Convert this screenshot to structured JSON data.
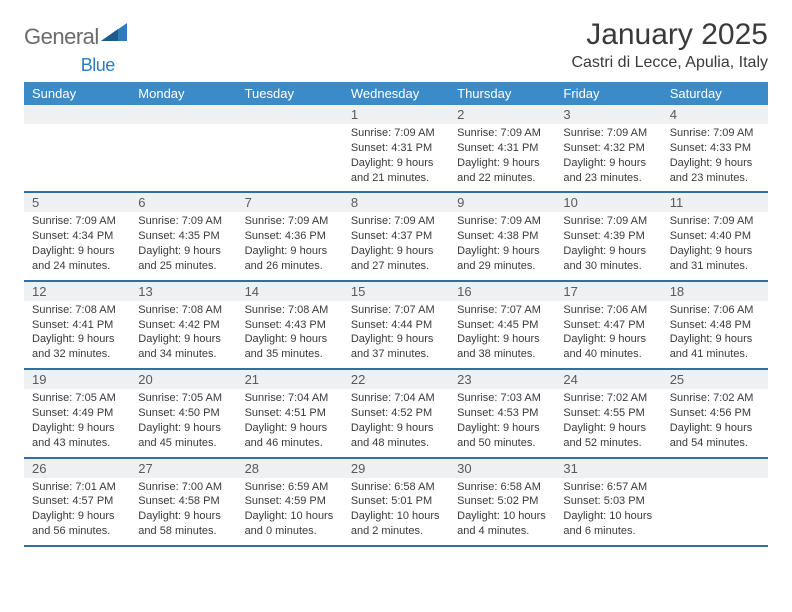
{
  "logo": {
    "text1": "General",
    "text2": "Blue"
  },
  "title": "January 2025",
  "location": "Castri di Lecce, Apulia, Italy",
  "colors": {
    "header_bg": "#3b8bc8",
    "header_text": "#ffffff",
    "daynum_bg": "#eef0f1",
    "rule": "#2f6fa3",
    "logo_gray": "#6b6b6b",
    "logo_blue": "#2f7bbf",
    "text": "#3a3a3a"
  },
  "weekdays": [
    "Sunday",
    "Monday",
    "Tuesday",
    "Wednesday",
    "Thursday",
    "Friday",
    "Saturday"
  ],
  "weeks": [
    [
      null,
      null,
      null,
      {
        "n": "1",
        "sr": "Sunrise: 7:09 AM",
        "ss": "Sunset: 4:31 PM",
        "dl1": "Daylight: 9 hours",
        "dl2": "and 21 minutes."
      },
      {
        "n": "2",
        "sr": "Sunrise: 7:09 AM",
        "ss": "Sunset: 4:31 PM",
        "dl1": "Daylight: 9 hours",
        "dl2": "and 22 minutes."
      },
      {
        "n": "3",
        "sr": "Sunrise: 7:09 AM",
        "ss": "Sunset: 4:32 PM",
        "dl1": "Daylight: 9 hours",
        "dl2": "and 23 minutes."
      },
      {
        "n": "4",
        "sr": "Sunrise: 7:09 AM",
        "ss": "Sunset: 4:33 PM",
        "dl1": "Daylight: 9 hours",
        "dl2": "and 23 minutes."
      }
    ],
    [
      {
        "n": "5",
        "sr": "Sunrise: 7:09 AM",
        "ss": "Sunset: 4:34 PM",
        "dl1": "Daylight: 9 hours",
        "dl2": "and 24 minutes."
      },
      {
        "n": "6",
        "sr": "Sunrise: 7:09 AM",
        "ss": "Sunset: 4:35 PM",
        "dl1": "Daylight: 9 hours",
        "dl2": "and 25 minutes."
      },
      {
        "n": "7",
        "sr": "Sunrise: 7:09 AM",
        "ss": "Sunset: 4:36 PM",
        "dl1": "Daylight: 9 hours",
        "dl2": "and 26 minutes."
      },
      {
        "n": "8",
        "sr": "Sunrise: 7:09 AM",
        "ss": "Sunset: 4:37 PM",
        "dl1": "Daylight: 9 hours",
        "dl2": "and 27 minutes."
      },
      {
        "n": "9",
        "sr": "Sunrise: 7:09 AM",
        "ss": "Sunset: 4:38 PM",
        "dl1": "Daylight: 9 hours",
        "dl2": "and 29 minutes."
      },
      {
        "n": "10",
        "sr": "Sunrise: 7:09 AM",
        "ss": "Sunset: 4:39 PM",
        "dl1": "Daylight: 9 hours",
        "dl2": "and 30 minutes."
      },
      {
        "n": "11",
        "sr": "Sunrise: 7:09 AM",
        "ss": "Sunset: 4:40 PM",
        "dl1": "Daylight: 9 hours",
        "dl2": "and 31 minutes."
      }
    ],
    [
      {
        "n": "12",
        "sr": "Sunrise: 7:08 AM",
        "ss": "Sunset: 4:41 PM",
        "dl1": "Daylight: 9 hours",
        "dl2": "and 32 minutes."
      },
      {
        "n": "13",
        "sr": "Sunrise: 7:08 AM",
        "ss": "Sunset: 4:42 PM",
        "dl1": "Daylight: 9 hours",
        "dl2": "and 34 minutes."
      },
      {
        "n": "14",
        "sr": "Sunrise: 7:08 AM",
        "ss": "Sunset: 4:43 PM",
        "dl1": "Daylight: 9 hours",
        "dl2": "and 35 minutes."
      },
      {
        "n": "15",
        "sr": "Sunrise: 7:07 AM",
        "ss": "Sunset: 4:44 PM",
        "dl1": "Daylight: 9 hours",
        "dl2": "and 37 minutes."
      },
      {
        "n": "16",
        "sr": "Sunrise: 7:07 AM",
        "ss": "Sunset: 4:45 PM",
        "dl1": "Daylight: 9 hours",
        "dl2": "and 38 minutes."
      },
      {
        "n": "17",
        "sr": "Sunrise: 7:06 AM",
        "ss": "Sunset: 4:47 PM",
        "dl1": "Daylight: 9 hours",
        "dl2": "and 40 minutes."
      },
      {
        "n": "18",
        "sr": "Sunrise: 7:06 AM",
        "ss": "Sunset: 4:48 PM",
        "dl1": "Daylight: 9 hours",
        "dl2": "and 41 minutes."
      }
    ],
    [
      {
        "n": "19",
        "sr": "Sunrise: 7:05 AM",
        "ss": "Sunset: 4:49 PM",
        "dl1": "Daylight: 9 hours",
        "dl2": "and 43 minutes."
      },
      {
        "n": "20",
        "sr": "Sunrise: 7:05 AM",
        "ss": "Sunset: 4:50 PM",
        "dl1": "Daylight: 9 hours",
        "dl2": "and 45 minutes."
      },
      {
        "n": "21",
        "sr": "Sunrise: 7:04 AM",
        "ss": "Sunset: 4:51 PM",
        "dl1": "Daylight: 9 hours",
        "dl2": "and 46 minutes."
      },
      {
        "n": "22",
        "sr": "Sunrise: 7:04 AM",
        "ss": "Sunset: 4:52 PM",
        "dl1": "Daylight: 9 hours",
        "dl2": "and 48 minutes."
      },
      {
        "n": "23",
        "sr": "Sunrise: 7:03 AM",
        "ss": "Sunset: 4:53 PM",
        "dl1": "Daylight: 9 hours",
        "dl2": "and 50 minutes."
      },
      {
        "n": "24",
        "sr": "Sunrise: 7:02 AM",
        "ss": "Sunset: 4:55 PM",
        "dl1": "Daylight: 9 hours",
        "dl2": "and 52 minutes."
      },
      {
        "n": "25",
        "sr": "Sunrise: 7:02 AM",
        "ss": "Sunset: 4:56 PM",
        "dl1": "Daylight: 9 hours",
        "dl2": "and 54 minutes."
      }
    ],
    [
      {
        "n": "26",
        "sr": "Sunrise: 7:01 AM",
        "ss": "Sunset: 4:57 PM",
        "dl1": "Daylight: 9 hours",
        "dl2": "and 56 minutes."
      },
      {
        "n": "27",
        "sr": "Sunrise: 7:00 AM",
        "ss": "Sunset: 4:58 PM",
        "dl1": "Daylight: 9 hours",
        "dl2": "and 58 minutes."
      },
      {
        "n": "28",
        "sr": "Sunrise: 6:59 AM",
        "ss": "Sunset: 4:59 PM",
        "dl1": "Daylight: 10 hours",
        "dl2": "and 0 minutes."
      },
      {
        "n": "29",
        "sr": "Sunrise: 6:58 AM",
        "ss": "Sunset: 5:01 PM",
        "dl1": "Daylight: 10 hours",
        "dl2": "and 2 minutes."
      },
      {
        "n": "30",
        "sr": "Sunrise: 6:58 AM",
        "ss": "Sunset: 5:02 PM",
        "dl1": "Daylight: 10 hours",
        "dl2": "and 4 minutes."
      },
      {
        "n": "31",
        "sr": "Sunrise: 6:57 AM",
        "ss": "Sunset: 5:03 PM",
        "dl1": "Daylight: 10 hours",
        "dl2": "and 6 minutes."
      },
      null
    ]
  ]
}
